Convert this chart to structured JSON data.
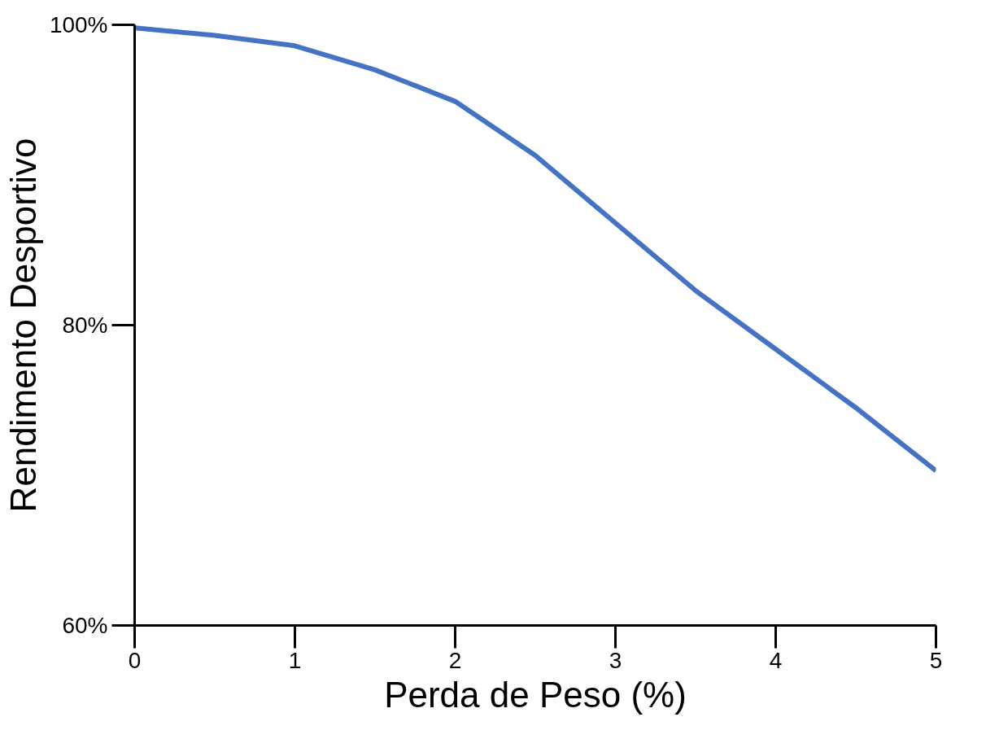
{
  "chart_data": {
    "type": "line",
    "xlabel": "Perda de Peso (%)",
    "ylabel": "Rendimento Desportivo",
    "x": [
      0,
      0.5,
      1,
      1.5,
      2,
      2.5,
      3,
      3.5,
      4,
      4.5,
      5
    ],
    "series": [
      {
        "color": "#4472c4",
        "values": [
          99.8,
          99.3,
          98.6,
          97.0,
          94.9,
          91.3,
          86.8,
          82.3,
          78.4,
          74.5,
          70.3
        ]
      }
    ],
    "xlim": [
      0,
      5
    ],
    "ylim": [
      60,
      100
    ],
    "xticks": [
      0,
      1,
      2,
      3,
      4,
      5
    ],
    "yticks": [
      {
        "value": 60,
        "label": "60%"
      },
      {
        "value": 80,
        "label": "80%"
      },
      {
        "value": 100,
        "label": "100%"
      }
    ],
    "grid": false,
    "marker": "none",
    "line_style": "solid"
  }
}
